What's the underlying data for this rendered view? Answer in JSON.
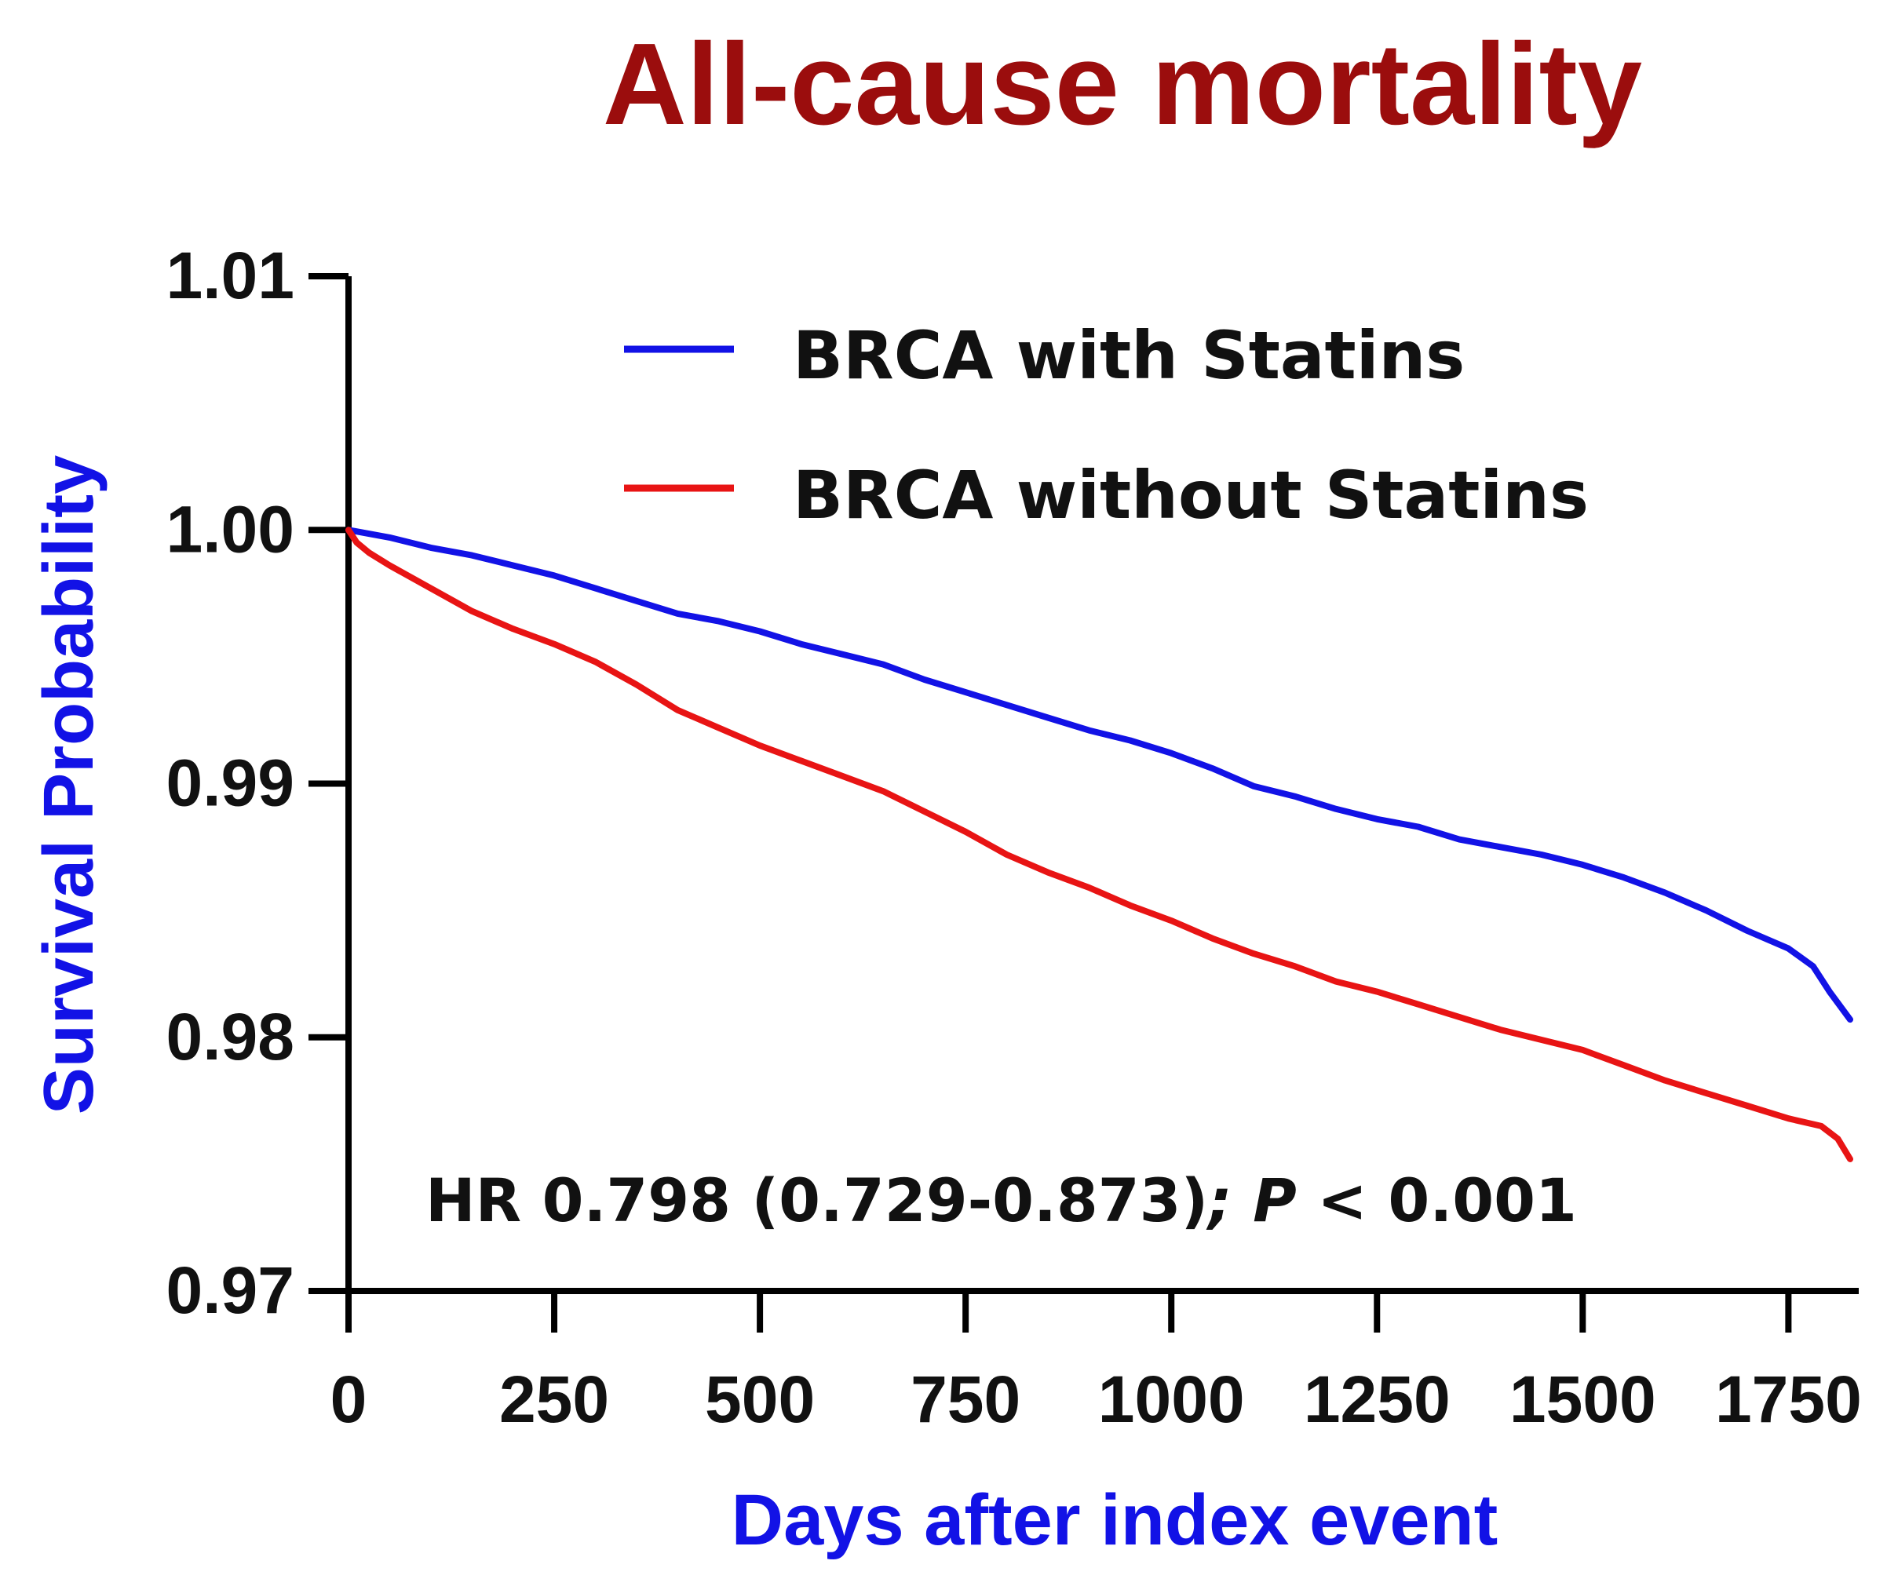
{
  "chart_data": {
    "type": "line",
    "title": "All-cause mortality",
    "xlabel": "Days after index event",
    "ylabel": "Survival Probability",
    "xlim": [
      0,
      1825
    ],
    "ylim": [
      0.97,
      1.01
    ],
    "x_ticks": [
      {
        "value": 0,
        "label": "0"
      },
      {
        "value": 250,
        "label": "250"
      },
      {
        "value": 500,
        "label": "500"
      },
      {
        "value": 750,
        "label": "750"
      },
      {
        "value": 1000,
        "label": "1000"
      },
      {
        "value": 1250,
        "label": "1250"
      },
      {
        "value": 1500,
        "label": "1500"
      },
      {
        "value": 1750,
        "label": "1750"
      }
    ],
    "y_ticks": [
      {
        "value": 1.01,
        "label": "1.01"
      },
      {
        "value": 1.0,
        "label": "1.00"
      },
      {
        "value": 0.99,
        "label": "0.99"
      },
      {
        "value": 0.98,
        "label": "0.98"
      },
      {
        "value": 0.97,
        "label": "0.97"
      }
    ],
    "series": [
      {
        "name": "BRCA with Statins",
        "color": "#1212E6",
        "points": [
          [
            0,
            1.0
          ],
          [
            50,
            0.9997
          ],
          [
            100,
            0.9993
          ],
          [
            150,
            0.999
          ],
          [
            200,
            0.9986
          ],
          [
            250,
            0.9982
          ],
          [
            300,
            0.9977
          ],
          [
            350,
            0.9972
          ],
          [
            400,
            0.9967
          ],
          [
            450,
            0.9964
          ],
          [
            500,
            0.996
          ],
          [
            550,
            0.9955
          ],
          [
            600,
            0.9951
          ],
          [
            650,
            0.9947
          ],
          [
            700,
            0.9941
          ],
          [
            750,
            0.9936
          ],
          [
            800,
            0.9931
          ],
          [
            850,
            0.9926
          ],
          [
            900,
            0.9921
          ],
          [
            950,
            0.9917
          ],
          [
            1000,
            0.9912
          ],
          [
            1050,
            0.9906
          ],
          [
            1100,
            0.9899
          ],
          [
            1150,
            0.9895
          ],
          [
            1200,
            0.989
          ],
          [
            1250,
            0.9886
          ],
          [
            1300,
            0.9883
          ],
          [
            1350,
            0.9878
          ],
          [
            1400,
            0.9875
          ],
          [
            1450,
            0.9872
          ],
          [
            1500,
            0.9868
          ],
          [
            1550,
            0.9863
          ],
          [
            1600,
            0.9857
          ],
          [
            1650,
            0.985
          ],
          [
            1700,
            0.9842
          ],
          [
            1750,
            0.9835
          ],
          [
            1780,
            0.9828
          ],
          [
            1800,
            0.9818
          ],
          [
            1825,
            0.9807
          ]
        ]
      },
      {
        "name": "BRCA without Statins",
        "color": "#E81414",
        "points": [
          [
            0,
            1.0
          ],
          [
            10,
            0.9995
          ],
          [
            25,
            0.9991
          ],
          [
            50,
            0.9986
          ],
          [
            100,
            0.9977
          ],
          [
            150,
            0.9968
          ],
          [
            200,
            0.9961
          ],
          [
            250,
            0.9955
          ],
          [
            300,
            0.9948
          ],
          [
            350,
            0.9939
          ],
          [
            400,
            0.9929
          ],
          [
            450,
            0.9922
          ],
          [
            500,
            0.9915
          ],
          [
            550,
            0.9909
          ],
          [
            600,
            0.9903
          ],
          [
            650,
            0.9897
          ],
          [
            700,
            0.9889
          ],
          [
            750,
            0.9881
          ],
          [
            800,
            0.9872
          ],
          [
            850,
            0.9865
          ],
          [
            900,
            0.9859
          ],
          [
            950,
            0.9852
          ],
          [
            1000,
            0.9846
          ],
          [
            1050,
            0.9839
          ],
          [
            1100,
            0.9833
          ],
          [
            1150,
            0.9828
          ],
          [
            1200,
            0.9822
          ],
          [
            1250,
            0.9818
          ],
          [
            1300,
            0.9813
          ],
          [
            1350,
            0.9808
          ],
          [
            1400,
            0.9803
          ],
          [
            1450,
            0.9799
          ],
          [
            1500,
            0.9795
          ],
          [
            1550,
            0.9789
          ],
          [
            1600,
            0.9783
          ],
          [
            1650,
            0.9778
          ],
          [
            1700,
            0.9773
          ],
          [
            1750,
            0.9768
          ],
          [
            1790,
            0.9765
          ],
          [
            1810,
            0.976
          ],
          [
            1825,
            0.9752
          ]
        ]
      }
    ],
    "legend_position": "top-center",
    "annotation": {
      "hr_text": "HR 0.798 (0.729-0.873)",
      "separator": ";",
      "p_symbol": "P",
      "p_value": "< 0.001"
    },
    "colors": {
      "title": "#9B0D0D",
      "axis_label": "#1212E6",
      "axis": "#000000"
    }
  }
}
